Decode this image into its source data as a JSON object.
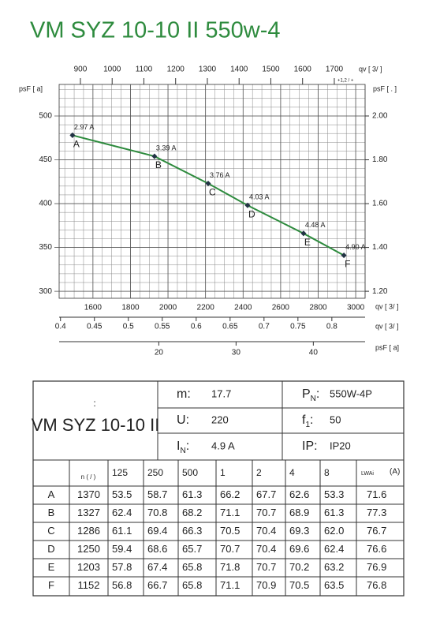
{
  "title": "VM SYZ 10-10 II 550w-4",
  "chart_data": {
    "type": "line",
    "x": [
      1491,
      1928,
      2214,
      2424,
      2722,
      2937
    ],
    "values": [
      478,
      454,
      423,
      398,
      366,
      341
    ],
    "point_names": [
      "A",
      "B",
      "C",
      "D",
      "E",
      "F"
    ],
    "annotations": [
      "2.97 A",
      "3.39 A",
      "3.76 A",
      "4.03 A",
      "4.48 A",
      "4.90 A"
    ],
    "color": "#2e8b3e",
    "grid": true,
    "xlim": [
      1420,
      3050
    ],
    "xticks": [
      1600,
      1800,
      2000,
      2200,
      2400,
      2600,
      2800,
      3000
    ],
    "ylim": [
      292,
      536
    ],
    "yticks": [
      300,
      350,
      400,
      450,
      500
    ],
    "y2lim": [
      1.168,
      2.144
    ],
    "y2ticks": [
      {
        "value": 1.2,
        "label": "1.20"
      },
      {
        "value": 1.4,
        "label": "1.40"
      },
      {
        "value": 1.6,
        "label": "1.60"
      },
      {
        "value": 1.8,
        "label": "1.80"
      },
      {
        "value": 2,
        "label": "2.00"
      }
    ],
    "x2lim": [
      833,
      1797
    ],
    "x2ticks": [
      900,
      1000,
      1100,
      1200,
      1300,
      1400,
      1500,
      1600,
      1700
    ],
    "x3lim": [
      0.398,
      0.849
    ],
    "x3ticks": [
      0.4,
      0.45,
      0.5,
      0.55,
      0.6,
      0.65,
      0.7,
      0.75,
      0.8
    ],
    "x4lim": [
      7.1,
      46.7
    ],
    "x4ticks": [
      20,
      30,
      40
    ],
    "ylabel": "psF [ a]",
    "y2label": "psF [ . ]",
    "x2label": "qv [ 3/ ]",
    "x2note": "+1,2 / +",
    "xlabel": "qv [ 3/ ]",
    "x3label": "qv [ 3/ ]",
    "x4label": "psF [ a]"
  },
  "table": {
    "model": {
      "colon": ":",
      "name": "VM SYZ 10-10 II"
    },
    "specs": [
      {
        "label": "m",
        "sub": "",
        "value": "17.7"
      },
      {
        "label": "U",
        "sub": "",
        "value": "220"
      },
      {
        "label": "I",
        "sub": "N",
        "value": "4.9  A"
      },
      {
        "label": "P",
        "sub": "N",
        "value": "550W-4P"
      },
      {
        "label": "f",
        "sub": "1",
        "value": "50"
      },
      {
        "label": "IP",
        "sub": "",
        "value": "IP20"
      }
    ],
    "header": {
      "n": "n (  /  )",
      "bands": [
        "125",
        "250",
        "500",
        "1",
        "2",
        "4",
        "8"
      ],
      "lwa": "LWAi",
      "lwa_unit": "(A)"
    },
    "rows": [
      [
        "A",
        "1370",
        "53.5",
        "58.7",
        "61.3",
        "66.2",
        "67.7",
        "62.6",
        "53.3",
        "71.6"
      ],
      [
        "B",
        "1327",
        "62.4",
        "70.8",
        "68.2",
        "71.1",
        "70.7",
        "68.9",
        "61.3",
        "77.3"
      ],
      [
        "C",
        "1286",
        "61.1",
        "69.4",
        "66.3",
        "70.5",
        "70.4",
        "69.3",
        "62.0",
        "76.7"
      ],
      [
        "D",
        "1250",
        "59.4",
        "68.6",
        "65.7",
        "70.7",
        "70.4",
        "69.6",
        "62.4",
        "76.6"
      ],
      [
        "E",
        "1203",
        "57.8",
        "67.4",
        "65.8",
        "71.8",
        "70.7",
        "70.2",
        "63.2",
        "76.9"
      ],
      [
        "F",
        "1152",
        "56.8",
        "66.7",
        "65.8",
        "71.1",
        "70.9",
        "70.5",
        "63.5",
        "76.8"
      ]
    ]
  }
}
